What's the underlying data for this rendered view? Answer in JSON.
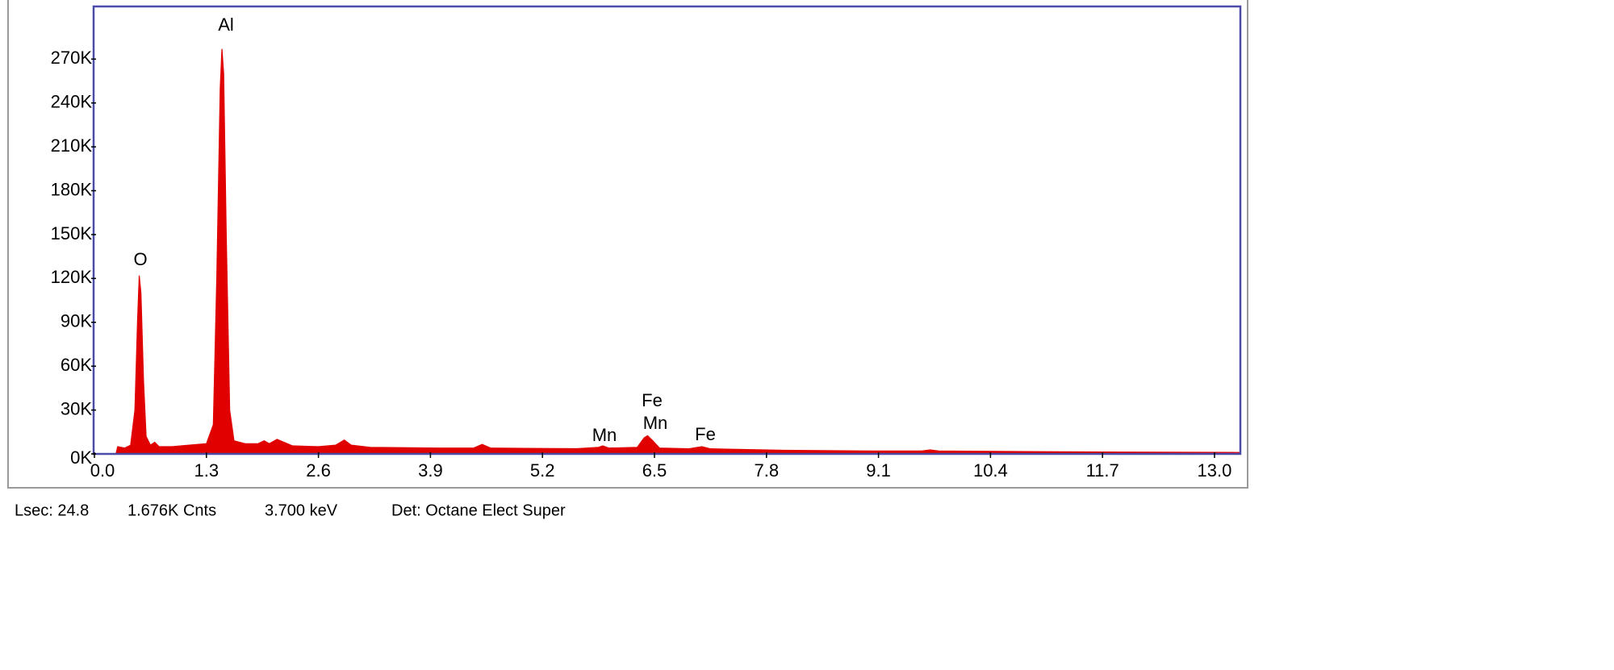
{
  "chart_data": {
    "type": "area",
    "color": "#e00000",
    "x": [
      0.25,
      0.27,
      0.35,
      0.42,
      0.47,
      0.5,
      0.52,
      0.54,
      0.57,
      0.6,
      0.65,
      0.7,
      0.75,
      0.9,
      1.1,
      1.3,
      1.38,
      1.42,
      1.46,
      1.48,
      1.5,
      1.53,
      1.57,
      1.62,
      1.75,
      1.9,
      1.97,
      2.03,
      2.12,
      2.2,
      2.3,
      2.6,
      2.8,
      2.9,
      2.98,
      3.2,
      4.0,
      4.4,
      4.5,
      4.6,
      5.0,
      5.6,
      5.85,
      5.9,
      5.97,
      6.3,
      6.38,
      6.42,
      6.48,
      6.56,
      6.9,
      7.05,
      7.15,
      8.0,
      9.0,
      9.6,
      9.7,
      9.8,
      11.0,
      13.3
    ],
    "values": [
      0,
      5000,
      4000,
      6000,
      30000,
      90000,
      122000,
      110000,
      50000,
      12000,
      6000,
      8000,
      5000,
      5000,
      6000,
      7000,
      20000,
      120000,
      250000,
      277000,
      260000,
      150000,
      30000,
      9000,
      7000,
      7000,
      9000,
      7000,
      10000,
      8000,
      5500,
      5000,
      6000,
      9500,
      6000,
      4500,
      4000,
      4000,
      6500,
      4000,
      3800,
      3600,
      4500,
      5500,
      4000,
      4500,
      11000,
      12500,
      9000,
      4000,
      3500,
      5000,
      3500,
      2500,
      2000,
      2000,
      2800,
      2000,
      1500,
      1000
    ],
    "xlim": [
      0,
      13.3
    ],
    "ylim": [
      0,
      306000
    ],
    "xticks": [
      {
        "value": 0,
        "label": "0.0"
      },
      1.3,
      2.6,
      3.9,
      5.2,
      6.5,
      7.8,
      9.1,
      10.4,
      11.7,
      {
        "value": 13,
        "label": "13.0"
      }
    ],
    "yticks": [
      {
        "value": 0,
        "label": "0K"
      },
      {
        "value": 30000,
        "label": "30K"
      },
      {
        "value": 60000,
        "label": "60K"
      },
      {
        "value": 90000,
        "label": "90K"
      },
      {
        "value": 120000,
        "label": "120K"
      },
      {
        "value": 150000,
        "label": "150K"
      },
      {
        "value": 180000,
        "label": "180K"
      },
      {
        "value": 210000,
        "label": "210K"
      },
      {
        "value": 240000,
        "label": "240K"
      },
      {
        "value": 270000,
        "label": "270K"
      }
    ],
    "annotations": [
      "Al",
      "O",
      "Mn",
      "Fe",
      "Mn",
      "Fe"
    ],
    "status": [
      "Lsec: 24.8",
      "1.676K Cnts",
      "3.700 keV",
      "Det: Octane Elect Super"
    ]
  }
}
